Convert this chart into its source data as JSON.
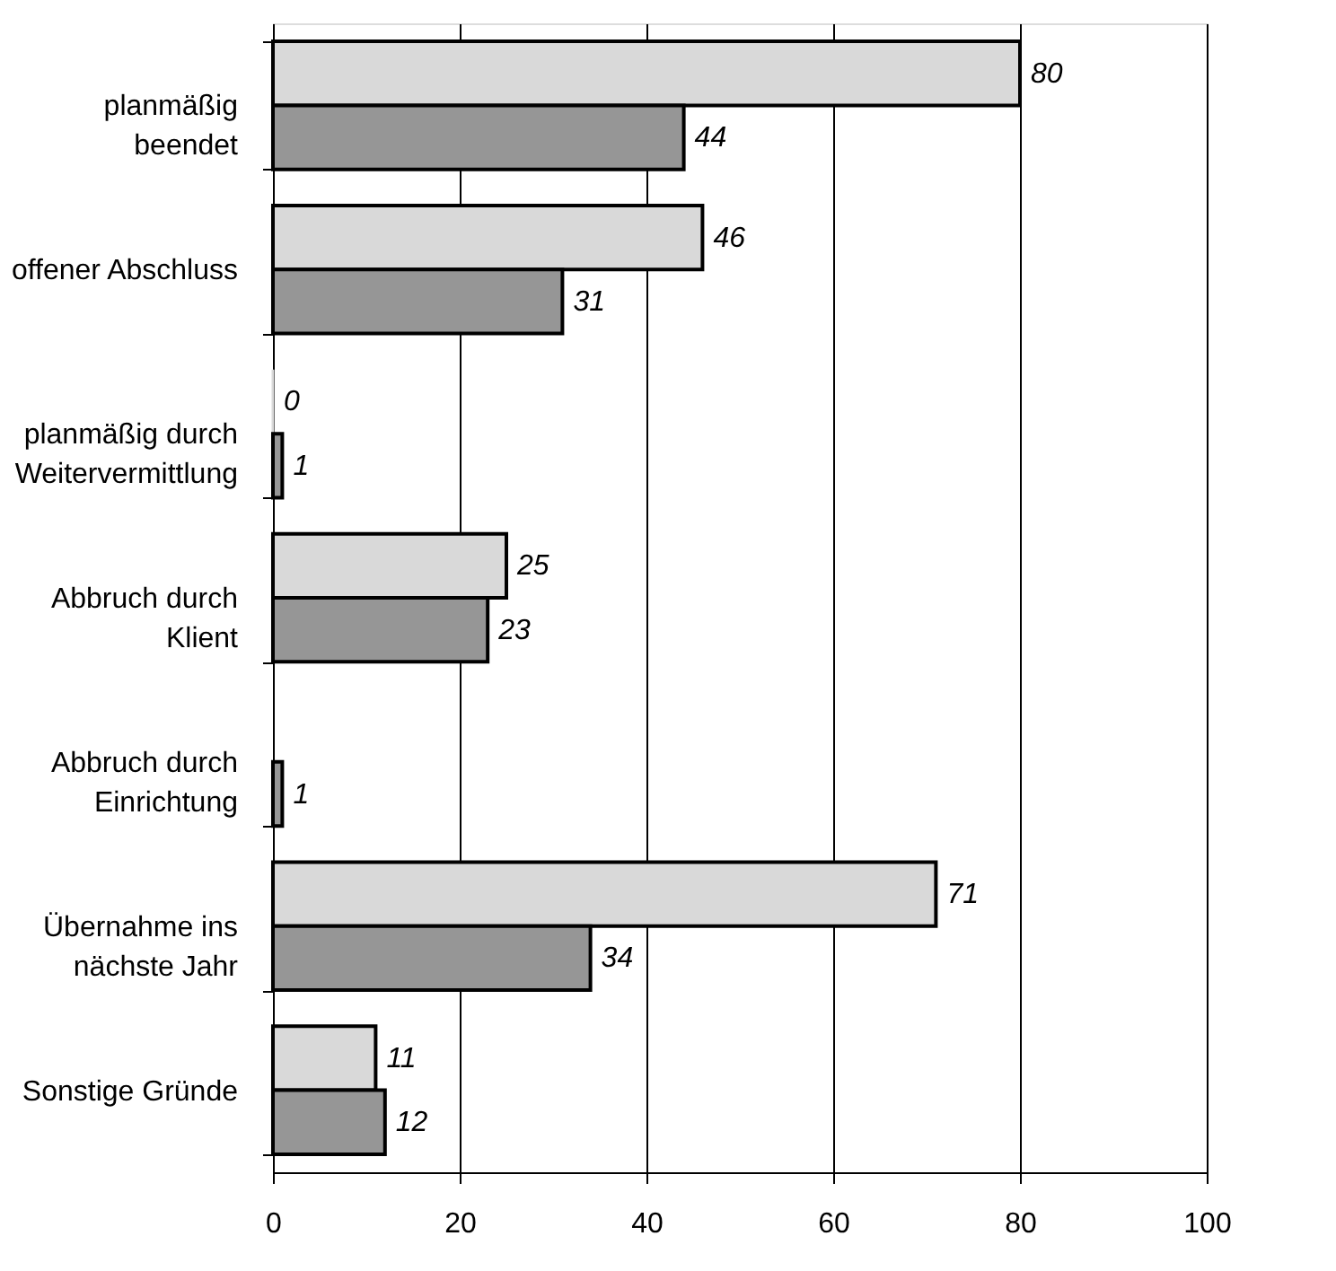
{
  "chart_data": {
    "type": "bar",
    "orientation": "horizontal",
    "categories": [
      "planmäßig\nbeendet",
      "offener Abschluss",
      "planmäßig durch\nWeitervermittlung",
      "Abbruch durch\nKlient",
      "Abbruch durch\nEinrichtung",
      "Übernahme ins\nnächste Jahr",
      "Sonstige Gründe"
    ],
    "series": [
      {
        "color": "#d9d9d9",
        "values": [
          80,
          46,
          0,
          25,
          null,
          71,
          11
        ],
        "value_labels": [
          "80",
          "46",
          "0",
          "25",
          null,
          "71",
          "11"
        ]
      },
      {
        "color": "#969696",
        "values": [
          44,
          31,
          1,
          23,
          1,
          34,
          12
        ],
        "value_labels": [
          "44",
          "31",
          "1",
          "23",
          "1",
          "34",
          "12"
        ]
      }
    ],
    "xlim": [
      0,
      100
    ],
    "xticks": [
      0,
      20,
      40,
      60,
      80,
      100
    ],
    "grid": "x",
    "legend": false
  }
}
